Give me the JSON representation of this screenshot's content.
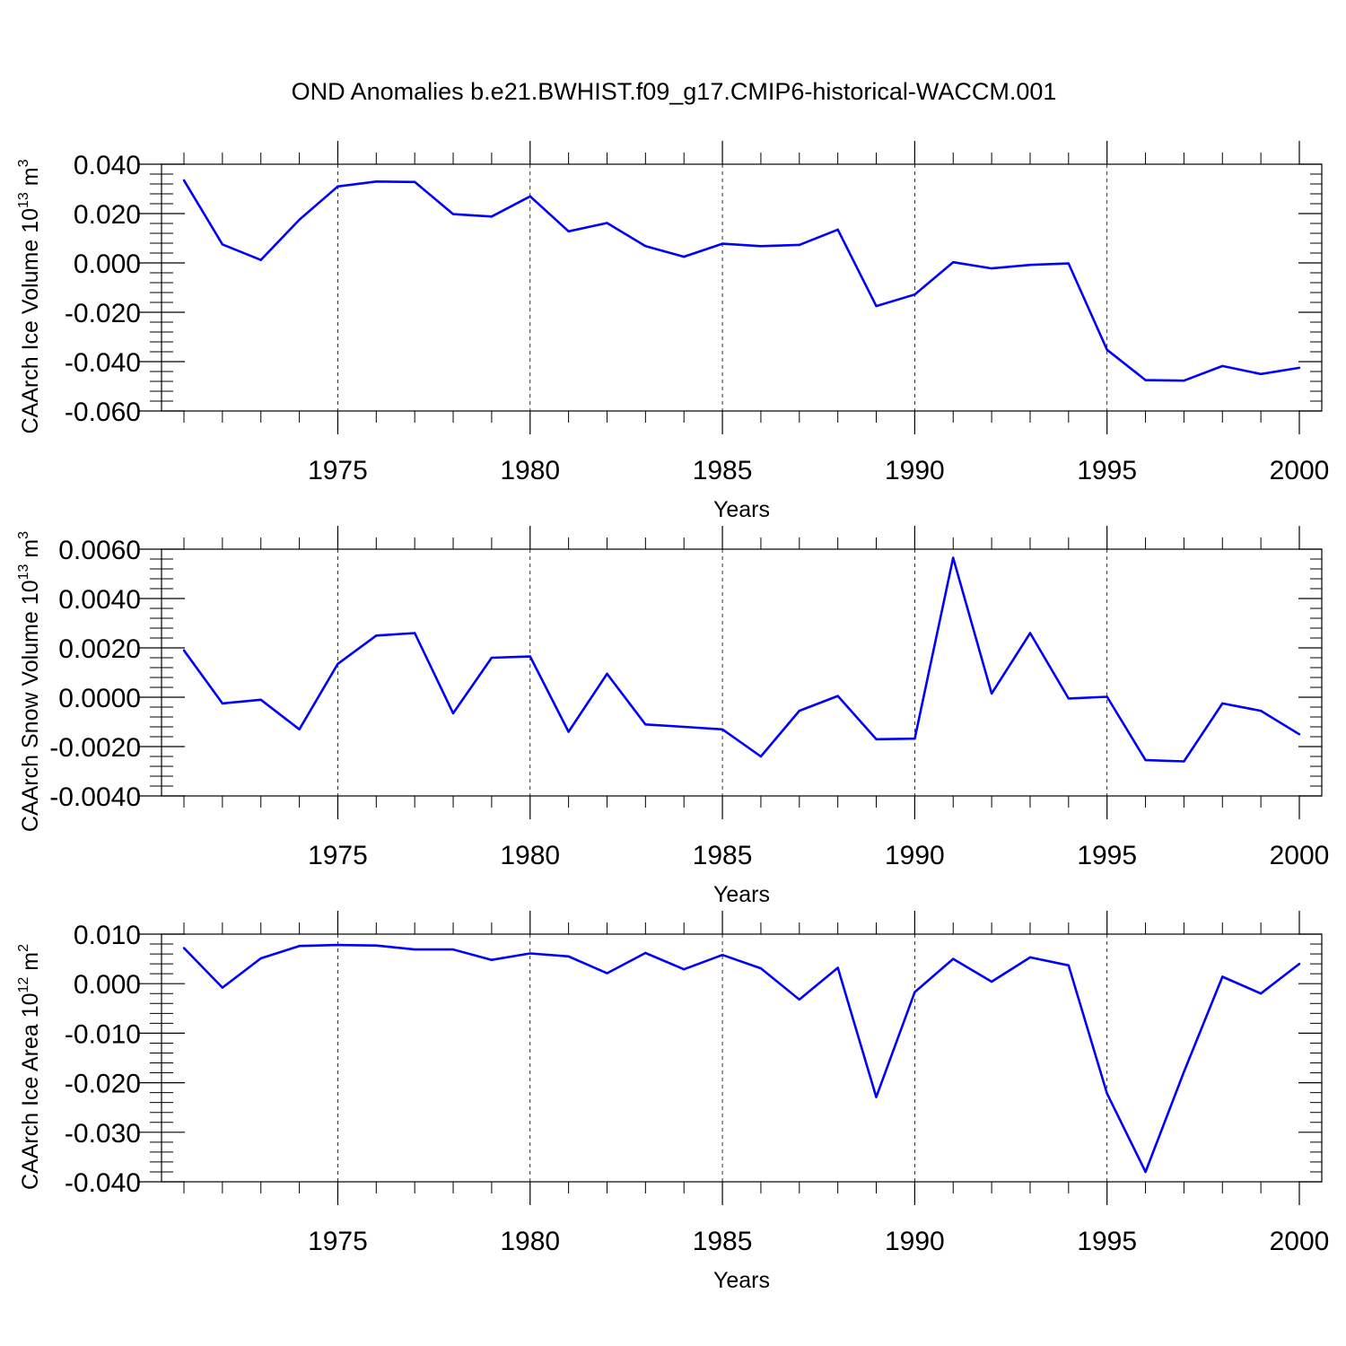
{
  "figure": {
    "title": "OND Anomalies b.e21.BWHIST.f09_g17.CMIP6-historical-WACCM.001",
    "line_color": "#0000ff"
  },
  "chart_data": [
    {
      "type": "line",
      "title": "",
      "xlabel": "Years",
      "ylabel": "CAArch Ice Volume 10",
      "ylabel_exp": "13",
      "ylabel_unit": "m",
      "ylabel_unit_exp": "3",
      "xlim": [
        1971,
        2000
      ],
      "ylim": [
        -0.06,
        0.04
      ],
      "xticks": [
        1975,
        1980,
        1985,
        1990,
        1995,
        2000
      ],
      "yticks": [
        -0.06,
        -0.04,
        -0.02,
        0.0,
        0.02,
        0.04
      ],
      "ytick_labels": [
        "-0.060",
        "-0.040",
        "-0.020",
        "0.000",
        "0.020",
        "0.040"
      ],
      "grid": "vertical dashed at major x ticks",
      "x": [
        1971,
        1972,
        1973,
        1974,
        1975,
        1976,
        1977,
        1978,
        1979,
        1980,
        1981,
        1982,
        1983,
        1984,
        1985,
        1986,
        1987,
        1988,
        1989,
        1990,
        1991,
        1992,
        1993,
        1994,
        1995,
        1996,
        1997,
        1998,
        1999,
        2000
      ],
      "series": [
        {
          "values": [
            0.0335,
            0.0075,
            0.0012,
            0.0175,
            0.031,
            0.033,
            0.0328,
            0.0198,
            0.0188,
            0.027,
            0.0128,
            0.0162,
            0.0068,
            0.0025,
            0.0078,
            0.0068,
            0.0073,
            0.0135,
            -0.0175,
            -0.0128,
            0.0003,
            -0.0022,
            -0.0008,
            -0.0002,
            -0.0352,
            -0.0475,
            -0.0477,
            -0.0418,
            -0.045,
            -0.0425
          ]
        }
      ]
    },
    {
      "type": "line",
      "title": "",
      "xlabel": "Years",
      "ylabel": "CAArch Snow Volume 10",
      "ylabel_exp": "13",
      "ylabel_unit": "m",
      "ylabel_unit_exp": "3",
      "xlim": [
        1971,
        2000
      ],
      "ylim": [
        -0.004,
        0.006
      ],
      "xticks": [
        1975,
        1980,
        1985,
        1990,
        1995,
        2000
      ],
      "yticks": [
        -0.004,
        -0.002,
        0.0,
        0.002,
        0.004,
        0.006
      ],
      "ytick_labels": [
        "-0.0040",
        "-0.0020",
        "0.0000",
        "0.0020",
        "0.0040",
        "0.0060"
      ],
      "grid": "vertical dashed at major x ticks",
      "x": [
        1971,
        1972,
        1973,
        1974,
        1975,
        1976,
        1977,
        1978,
        1979,
        1980,
        1981,
        1982,
        1983,
        1984,
        1985,
        1986,
        1987,
        1988,
        1989,
        1990,
        1991,
        1992,
        1993,
        1994,
        1995,
        1996,
        1997,
        1998,
        1999,
        2000
      ],
      "series": [
        {
          "values": [
            0.0019,
            -0.00025,
            -0.0001,
            -0.0013,
            0.00135,
            0.0025,
            0.0026,
            -0.00065,
            0.0016,
            0.00165,
            -0.0014,
            0.00095,
            -0.0011,
            -0.0012,
            -0.0013,
            -0.0024,
            -0.00055,
            5e-05,
            -0.0017,
            -0.00168,
            0.00565,
            0.00015,
            0.0026,
            -5e-05,
            2e-05,
            -0.00255,
            -0.0026,
            -0.00025,
            -0.00055,
            -0.0015
          ]
        }
      ]
    },
    {
      "type": "line",
      "title": "",
      "xlabel": "Years",
      "ylabel": "CAArch Ice Area 10",
      "ylabel_exp": "12",
      "ylabel_unit": "m",
      "ylabel_unit_exp": "2",
      "xlim": [
        1971,
        2000
      ],
      "ylim": [
        -0.04,
        0.01
      ],
      "xticks": [
        1975,
        1980,
        1985,
        1990,
        1995,
        2000
      ],
      "yticks": [
        -0.04,
        -0.03,
        -0.02,
        -0.01,
        0.0,
        0.01
      ],
      "ytick_labels": [
        "-0.040",
        "-0.030",
        "-0.020",
        "-0.010",
        "0.000",
        "0.010"
      ],
      "grid": "vertical dashed at major x ticks",
      "x": [
        1971,
        1972,
        1973,
        1974,
        1975,
        1976,
        1977,
        1978,
        1979,
        1980,
        1981,
        1982,
        1983,
        1984,
        1985,
        1986,
        1987,
        1988,
        1989,
        1990,
        1991,
        1992,
        1993,
        1994,
        1995,
        1996,
        1997,
        1998,
        1999,
        2000
      ],
      "series": [
        {
          "values": [
            0.0072,
            -0.0008,
            0.0051,
            0.0076,
            0.0078,
            0.0077,
            0.0069,
            0.0069,
            0.0048,
            0.0061,
            0.0055,
            0.0021,
            0.0062,
            0.0029,
            0.0058,
            0.0031,
            -0.0032,
            0.0032,
            -0.0229,
            -0.0017,
            0.005,
            0.0004,
            0.0053,
            0.0037,
            -0.0222,
            -0.038,
            -0.0178,
            0.0014,
            -0.002,
            0.004
          ]
        }
      ]
    }
  ]
}
